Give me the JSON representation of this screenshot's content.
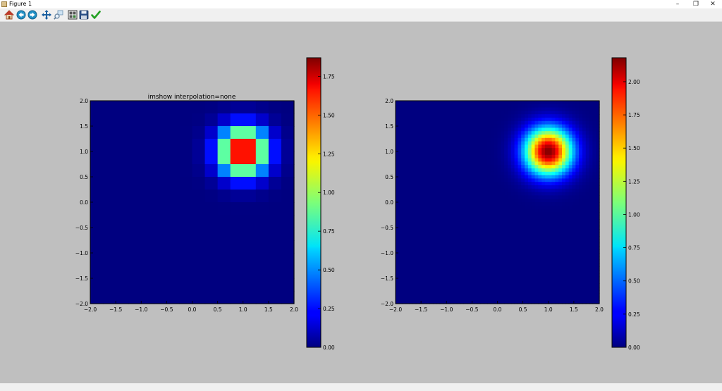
{
  "window": {
    "title": "Figure 1",
    "minimize": "–",
    "restore": "❐",
    "close": "✕"
  },
  "toolbar": {
    "buttons": [
      {
        "name": "home",
        "icon": "home-icon"
      },
      {
        "name": "back",
        "icon": "back-arrow-icon"
      },
      {
        "name": "forward",
        "icon": "forward-arrow-icon"
      },
      {
        "name": "pan",
        "icon": "pan-icon"
      },
      {
        "name": "zoom",
        "icon": "zoom-icon"
      },
      {
        "name": "subplots",
        "icon": "subplots-icon"
      },
      {
        "name": "save",
        "icon": "save-icon"
      },
      {
        "name": "edit",
        "icon": "checkmark-icon"
      }
    ]
  },
  "status": {
    "text": ""
  },
  "chart_data": [
    {
      "type": "heatmap",
      "title": "imshow interpolation=none",
      "interpolation": "none",
      "colormap": "jet",
      "extent": [
        -2.0,
        2.0,
        -2.0,
        2.0
      ],
      "grid_size": 16,
      "peak": {
        "x": 1.0,
        "y": 1.0
      },
      "sigma": 0.32,
      "xlim": [
        -2.0,
        2.0
      ],
      "ylim": [
        -2.0,
        2.0
      ],
      "xticks": [
        "−2.0",
        "−1.5",
        "−1.0",
        "−0.5",
        "0.0",
        "0.5",
        "1.0",
        "1.5",
        "2.0"
      ],
      "yticks": [
        "2.0",
        "1.5",
        "1.0",
        "0.5",
        "0.0",
        "−0.5",
        "−1.0",
        "−1.5",
        "−2.0"
      ],
      "colorbar": {
        "min": 0.0,
        "max": 1.87,
        "ticks": [
          "1.75",
          "1.50",
          "1.25",
          "1.00",
          "0.75",
          "0.50",
          "0.25",
          "0.00"
        ],
        "tick_values": [
          1.75,
          1.5,
          1.25,
          1.0,
          0.75,
          0.5,
          0.25,
          0.0
        ]
      }
    },
    {
      "type": "heatmap",
      "title": "",
      "interpolation": "smooth",
      "colormap": "jet",
      "extent": [
        -2.0,
        2.0,
        -2.0,
        2.0
      ],
      "grid_size": 60,
      "peak": {
        "x": 1.0,
        "y": 1.0
      },
      "sigma": 0.32,
      "xlim": [
        -2.0,
        2.0
      ],
      "ylim": [
        -2.0,
        2.0
      ],
      "xticks": [
        "−2.0",
        "−1.5",
        "−1.0",
        "−0.5",
        "0.0",
        "0.5",
        "1.0",
        "1.5",
        "2.0"
      ],
      "yticks": [
        "2.0",
        "1.5",
        "1.0",
        "0.5",
        "0.0",
        "−0.5",
        "−1.0",
        "−1.5",
        "−2.0"
      ],
      "colorbar": {
        "min": 0.0,
        "max": 2.18,
        "ticks": [
          "2.00",
          "1.75",
          "1.50",
          "1.25",
          "1.00",
          "0.75",
          "0.50",
          "0.25",
          "0.00"
        ],
        "tick_values": [
          2.0,
          1.75,
          1.5,
          1.25,
          1.0,
          0.75,
          0.5,
          0.25,
          0.0
        ]
      }
    }
  ]
}
